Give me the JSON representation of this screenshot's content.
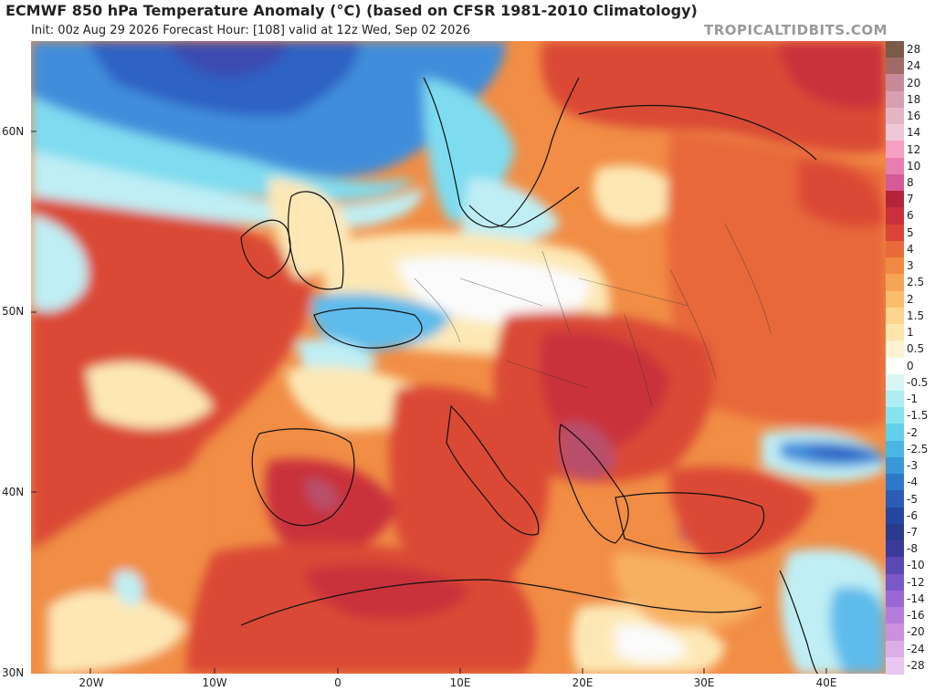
{
  "header": {
    "title": "ECMWF 850 hPa Temperature Anomaly (°C) (based on CFSR 1981-2010 Climatology)",
    "subtitle": "Init: 00z Aug 29 2026   Forecast Hour: [108]   valid at 12z Wed, Sep 02 2026",
    "brand": "TROPICALTIDBITS.COM"
  },
  "axes": {
    "lat_labels": [
      "60N",
      "50N",
      "40N",
      "30N"
    ],
    "lon_labels": [
      "20W",
      "10W",
      "0",
      "10E",
      "20E",
      "30E",
      "40E"
    ]
  },
  "colorbar": {
    "labels": [
      "28",
      "24",
      "20",
      "18",
      "16",
      "14",
      "12",
      "10",
      "8",
      "7",
      "6",
      "5",
      "4",
      "3",
      "2.5",
      "2",
      "1.5",
      "1",
      "0.5",
      "0",
      "-0.5",
      "-1",
      "-1.5",
      "-2",
      "-2.5",
      "-3",
      "-4",
      "-5",
      "-6",
      "-7",
      "-8",
      "-10",
      "-12",
      "-14",
      "-16",
      "-20",
      "-24",
      "-28"
    ],
    "colors": [
      "#7a5a48",
      "#a06a66",
      "#c68a98",
      "#d6a0b2",
      "#e3b6c6",
      "#eec8d6",
      "#f6a0c4",
      "#e87eb0",
      "#d45a98",
      "#b3243c",
      "#cc2e3a",
      "#d94436",
      "#e86a3a",
      "#f08a42",
      "#f6a457",
      "#fabd70",
      "#fdd58c",
      "#fde7ac",
      "#fdf3d2",
      "#ffffff",
      "#d8f6f6",
      "#aeeef2",
      "#86e3ee",
      "#62d0ea",
      "#4ab6e3",
      "#3a98d8",
      "#2e78c9",
      "#2a5cb8",
      "#24469f",
      "#2a3a8c",
      "#3b3a9a",
      "#5a48b4",
      "#7a58c6",
      "#9a68d2",
      "#b67cda",
      "#cc90de",
      "#dcaee6",
      "#e8c8ee"
    ]
  },
  "map": {
    "colors": {
      "deep_red": "#c9303a",
      "red": "#da4a35",
      "orange_red": "#e8683a",
      "orange": "#f18d45",
      "light_orange": "#f7b060",
      "peach": "#fbd08a",
      "cream": "#fde8b5",
      "white": "#fbfbfb",
      "light_cyan": "#bfeef4",
      "cyan": "#7fdcf0",
      "light_blue": "#5fbbeb",
      "blue": "#3f8edb",
      "deep_blue": "#2d62c4",
      "purple_blue": "#3b4cb0",
      "magenta_hot": "#b8506a",
      "land_border": "#111111"
    }
  }
}
